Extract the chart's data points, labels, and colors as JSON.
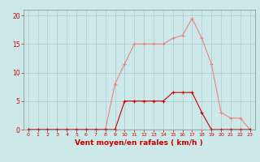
{
  "x": [
    0,
    1,
    2,
    3,
    4,
    5,
    6,
    7,
    8,
    9,
    10,
    11,
    12,
    13,
    14,
    15,
    16,
    17,
    18,
    19,
    20,
    21,
    22,
    23
  ],
  "rafales": [
    0,
    0,
    0,
    0,
    0,
    0,
    0,
    0,
    0,
    8,
    11.5,
    15,
    15,
    15,
    15,
    16,
    16.5,
    19.5,
    16,
    11.5,
    3,
    2,
    2,
    0
  ],
  "moyen": [
    0,
    0,
    0,
    0,
    0,
    0,
    0,
    0,
    0,
    0,
    5,
    5,
    5,
    5,
    5,
    6.5,
    6.5,
    6.5,
    3,
    0,
    0,
    0,
    0,
    0
  ],
  "line_color_rafales": "#f08080",
  "line_color_moyen": "#cc0000",
  "marker_color_rafales": "#f08080",
  "marker_color_moyen": "#cc0000",
  "bg_color": "#cce8e8",
  "grid_color": "#aacccc",
  "xlabel": "Vent moyen/en rafales ( km/h )",
  "xlabel_color": "#cc0000",
  "tick_color": "#cc0000",
  "spine_color": "#888888",
  "ylim": [
    0,
    21
  ],
  "xlim": [
    -0.5,
    23.5
  ],
  "yticks": [
    0,
    5,
    10,
    15,
    20
  ],
  "xticks": [
    0,
    1,
    2,
    3,
    4,
    5,
    6,
    7,
    8,
    9,
    10,
    11,
    12,
    13,
    14,
    15,
    16,
    17,
    18,
    19,
    20,
    21,
    22,
    23
  ]
}
